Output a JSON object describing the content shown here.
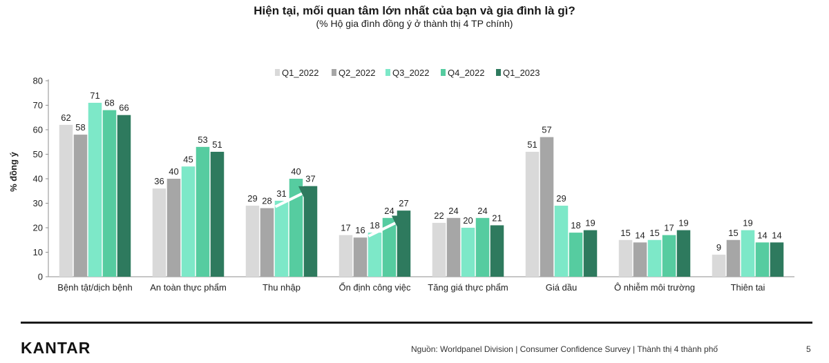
{
  "chart_data": {
    "type": "bar",
    "title": "Hiện tại, mối quan tâm lớn nhất của bạn và gia đình là gì?",
    "subtitle": "(% Hộ gia đình đồng ý ở thành thị 4 TP chính)",
    "ylabel": "% đồng ý",
    "xlabel": "",
    "ylim": [
      0,
      80
    ],
    "yticks": [
      0,
      10,
      20,
      30,
      40,
      50,
      60,
      70,
      80
    ],
    "legend_position": "top-center",
    "grid": false,
    "categories": [
      "Bệnh tật/dịch bệnh",
      "An toàn thực phẩm",
      "Thu nhập",
      "Ổn định công việc",
      "Tăng giá thực phẩm",
      "Giá dầu",
      "Ô nhiễm môi trường",
      "Thiên tai"
    ],
    "series": [
      {
        "name": "Q1_2022",
        "color": "#d9d9d9",
        "values": [
          62,
          36,
          29,
          17,
          22,
          51,
          15,
          9
        ]
      },
      {
        "name": "Q2_2022",
        "color": "#a6a6a6",
        "values": [
          58,
          40,
          28,
          16,
          24,
          57,
          14,
          15
        ]
      },
      {
        "name": "Q3_2022",
        "color": "#7de8c8",
        "values": [
          71,
          45,
          31,
          18,
          20,
          29,
          15,
          19
        ]
      },
      {
        "name": "Q4_2022",
        "color": "#56cca0",
        "values": [
          68,
          53,
          40,
          24,
          24,
          18,
          17,
          14
        ]
      },
      {
        "name": "Q1_2023",
        "color": "#2e7a5e",
        "values": [
          66,
          51,
          37,
          27,
          21,
          19,
          19,
          14
        ]
      }
    ],
    "annotations": [
      {
        "type": "trend-arrow",
        "category": "Thu nhập",
        "direction": "up"
      },
      {
        "type": "trend-arrow",
        "category": "Ổn định công việc",
        "direction": "up"
      }
    ]
  },
  "footer": {
    "logo": "KANTAR",
    "source": "Nguồn: Worldpanel Division | Consumer Confidence Survey | Thành thị 4 thành phố",
    "page_number": "5"
  }
}
